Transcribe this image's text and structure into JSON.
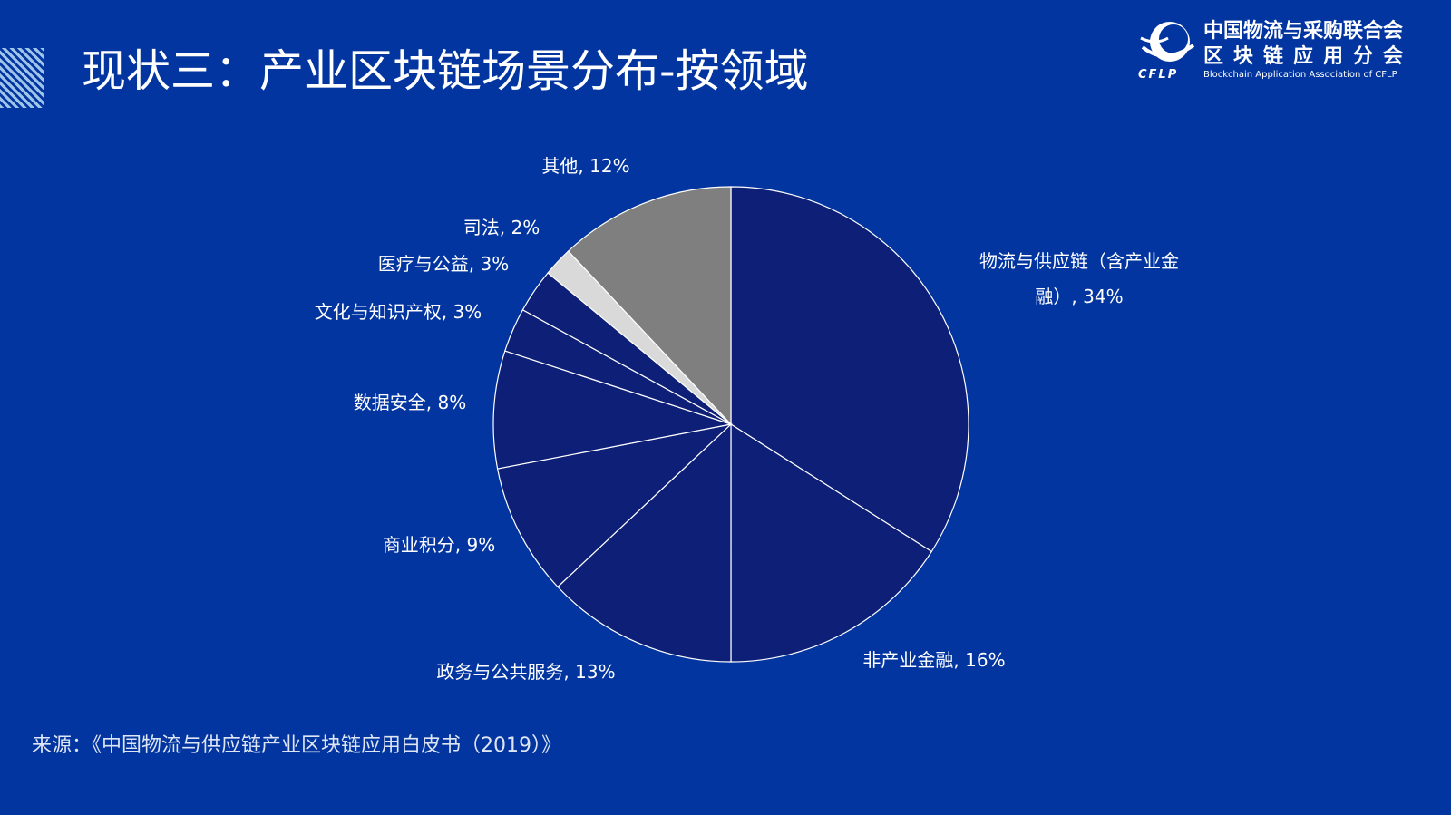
{
  "header": {
    "title": "现状三：产业区块链场景分布-按领域"
  },
  "logo": {
    "name_line1": "中国物流与采购联合会",
    "name_line2": "区块链应用分会",
    "name_en": "Blockchain Application Association of CFLP",
    "abbr": "CFLP"
  },
  "chart_data": {
    "type": "pie",
    "start": "12 o'clock, clockwise",
    "slices": [
      {
        "label": "物流与供应链（含产业金融）",
        "value": 34,
        "display": [
          "物流与供应链（含产业金",
          "融）, 34%"
        ],
        "color": "#0e1f78"
      },
      {
        "label": "非产业金融",
        "value": 16,
        "display": [
          "非产业金融, 16%"
        ],
        "color": "#0e1f78"
      },
      {
        "label": "政务与公共服务",
        "value": 13,
        "display": [
          "政务与公共服务, 13%"
        ],
        "color": "#0e1f78"
      },
      {
        "label": "商业积分",
        "value": 9,
        "display": [
          "商业积分, 9%"
        ],
        "color": "#0e1f78"
      },
      {
        "label": "数据安全",
        "value": 8,
        "display": [
          "数据安全, 8%"
        ],
        "color": "#0e1f78"
      },
      {
        "label": "文化与知识产权",
        "value": 3,
        "display": [
          "文化与知识产权, 3%"
        ],
        "color": "#0e1f78"
      },
      {
        "label": "医疗与公益",
        "value": 3,
        "display": [
          "医疗与公益, 3%"
        ],
        "color": "#0e1f78"
      },
      {
        "label": "司法",
        "value": 2,
        "display": [
          "司法, 2%"
        ],
        "color": "#d9d9d9"
      },
      {
        "label": "其他",
        "value": 12,
        "display": [
          "其他, 12%"
        ],
        "color": "#7f7f7f"
      }
    ],
    "slice_border_color": "#ffffff"
  },
  "footer": {
    "source": "来源：《中国物流与供应链产业区块链应用白皮书（2019）》"
  }
}
